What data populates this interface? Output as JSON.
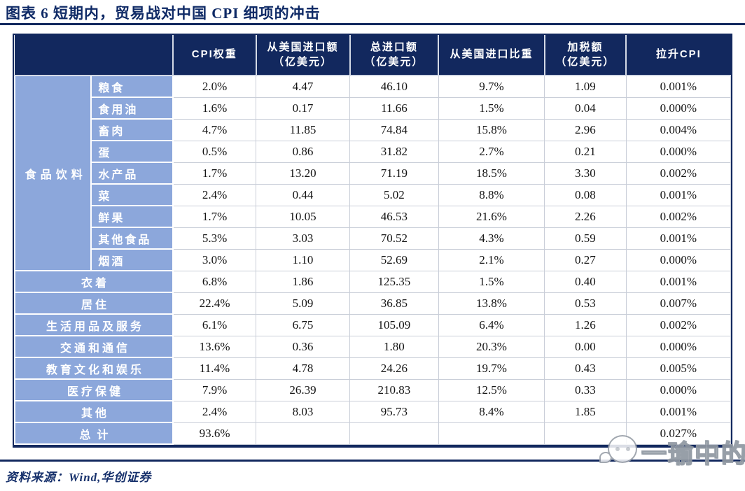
{
  "title": "图表 6  短期内，贸易战对中国 CPI 细项的冲击",
  "colors": {
    "header_bg": "#12285E",
    "row_label_bg": "#8CA7DB",
    "title_color": "#0F2A66",
    "grid_color": "#C9CED8"
  },
  "table": {
    "corner": "",
    "columns": [
      {
        "lines": [
          "CPI权重"
        ]
      },
      {
        "lines": [
          "从美国进口额",
          "（亿美元）"
        ]
      },
      {
        "lines": [
          "总进口额",
          "（亿美元）"
        ]
      },
      {
        "lines": [
          "从美国进口比重"
        ]
      },
      {
        "lines": [
          "加税额",
          "（亿美元）"
        ]
      },
      {
        "lines": [
          "拉升CPI"
        ]
      }
    ],
    "food_group": {
      "label": "食品饮料",
      "rows": [
        {
          "label": "粮食",
          "values": [
            "2.0%",
            "4.47",
            "46.10",
            "9.7%",
            "1.09",
            "0.001%"
          ]
        },
        {
          "label": "食用油",
          "values": [
            "1.6%",
            "0.17",
            "11.66",
            "1.5%",
            "0.04",
            "0.000%"
          ]
        },
        {
          "label": "畜肉",
          "values": [
            "4.7%",
            "11.85",
            "74.84",
            "15.8%",
            "2.96",
            "0.004%"
          ]
        },
        {
          "label": "蛋",
          "values": [
            "0.5%",
            "0.86",
            "31.82",
            "2.7%",
            "0.21",
            "0.000%"
          ]
        },
        {
          "label": "水产品",
          "values": [
            "1.7%",
            "13.20",
            "71.19",
            "18.5%",
            "3.30",
            "0.002%"
          ]
        },
        {
          "label": "菜",
          "values": [
            "2.4%",
            "0.44",
            "5.02",
            "8.8%",
            "0.08",
            "0.001%"
          ]
        },
        {
          "label": "鲜果",
          "values": [
            "1.7%",
            "10.05",
            "46.53",
            "21.6%",
            "2.26",
            "0.002%"
          ]
        },
        {
          "label": "其他食品",
          "values": [
            "5.3%",
            "3.03",
            "70.52",
            "4.3%",
            "0.59",
            "0.001%"
          ]
        },
        {
          "label": "烟酒",
          "values": [
            "3.0%",
            "1.10",
            "52.69",
            "2.1%",
            "0.27",
            "0.000%"
          ]
        }
      ]
    },
    "rows": [
      {
        "label": "衣着",
        "values": [
          "6.8%",
          "1.86",
          "125.35",
          "1.5%",
          "0.40",
          "0.001%"
        ]
      },
      {
        "label": "居住",
        "values": [
          "22.4%",
          "5.09",
          "36.85",
          "13.8%",
          "0.53",
          "0.007%"
        ]
      },
      {
        "label": "生活用品及服务",
        "values": [
          "6.1%",
          "6.75",
          "105.09",
          "6.4%",
          "1.26",
          "0.002%"
        ]
      },
      {
        "label": "交通和通信",
        "values": [
          "13.6%",
          "0.36",
          "1.80",
          "20.3%",
          "0.00",
          "0.000%"
        ]
      },
      {
        "label": "教育文化和娱乐",
        "values": [
          "11.4%",
          "4.78",
          "24.26",
          "19.7%",
          "0.43",
          "0.005%"
        ]
      },
      {
        "label": "医疗保健",
        "values": [
          "7.9%",
          "26.39",
          "210.83",
          "12.5%",
          "0.33",
          "0.000%"
        ]
      },
      {
        "label": "其他",
        "values": [
          "2.4%",
          "8.03",
          "95.73",
          "8.4%",
          "1.85",
          "0.001%"
        ]
      },
      {
        "label": "总计",
        "values": [
          "93.6%",
          "",
          "",
          "",
          "",
          "0.027%"
        ]
      }
    ]
  },
  "footer": {
    "source": "资料来源：Wind,华创证券"
  },
  "watermark": {
    "icon": "chat-bubbles-icon",
    "text": "一瑜中的"
  }
}
